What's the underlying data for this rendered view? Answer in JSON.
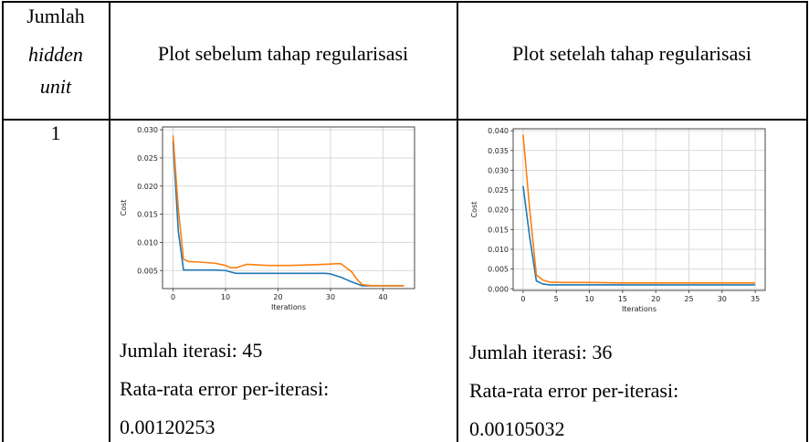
{
  "header": {
    "col1_line1": "Jumlah",
    "col1_line2": "hidden",
    "col1_line3": "unit",
    "col2": "Plot sebelum tahap regularisasi",
    "col3": "Plot setelah tahap regularisasi"
  },
  "row1": {
    "hidden_units": "1",
    "before": {
      "iterations_text": "Jumlah iterasi: 45",
      "error_label": "Rata-rata error per-iterasi:",
      "error_value": "0.00120253"
    },
    "after": {
      "iterations_text": "Jumlah iterasi: 36",
      "error_label": "Rata-rata error per-iterasi:",
      "error_value": "0.00105032"
    }
  },
  "colors": {
    "train": "#1f77b4",
    "test": "#ff7f0e",
    "grid": "#d9d9d9"
  },
  "chart_data": [
    {
      "type": "line",
      "xlabel": "Iterations",
      "ylabel": "Cost",
      "xlim": [
        -2,
        46
      ],
      "ylim": [
        0.0018,
        0.0305
      ],
      "xticks": [
        0,
        10,
        20,
        30,
        40
      ],
      "yticks": [
        0.005,
        0.01,
        0.015,
        0.02,
        0.025,
        0.03
      ],
      "ytick_labels": [
        "0.005",
        "0.010",
        "0.015",
        "0.020",
        "0.025",
        "0.030"
      ],
      "grid": true,
      "series": [
        {
          "color": "#1f77b4",
          "x": [
            0,
            1,
            2,
            3,
            5,
            8,
            10,
            12,
            14,
            18,
            22,
            26,
            29,
            30,
            32,
            34,
            36,
            38,
            40,
            42,
            44
          ],
          "y": [
            0.028,
            0.012,
            0.0051,
            0.0051,
            0.0051,
            0.0051,
            0.005,
            0.0045,
            0.0045,
            0.0045,
            0.0045,
            0.0045,
            0.0045,
            0.0044,
            0.0038,
            0.003,
            0.0023,
            0.0023,
            0.0023,
            0.0023,
            0.0023
          ]
        },
        {
          "color": "#ff7f0e",
          "x": [
            0,
            1,
            2,
            3,
            5,
            8,
            10,
            11,
            12,
            13,
            14,
            18,
            22,
            26,
            29,
            31,
            32,
            34,
            35,
            36,
            38,
            40,
            42,
            44
          ],
          "y": [
            0.029,
            0.016,
            0.007,
            0.0066,
            0.0065,
            0.0063,
            0.0059,
            0.0055,
            0.0055,
            0.0058,
            0.0061,
            0.0059,
            0.0059,
            0.006,
            0.0061,
            0.0062,
            0.0062,
            0.0048,
            0.0035,
            0.0025,
            0.0023,
            0.0023,
            0.0023,
            0.0023
          ]
        }
      ]
    },
    {
      "type": "line",
      "xlabel": "Iterations",
      "ylabel": "Cost",
      "xlim": [
        -1.5,
        36.5
      ],
      "ylim": [
        -0.0004,
        0.0405
      ],
      "xticks": [
        0,
        5,
        10,
        15,
        20,
        25,
        30,
        35
      ],
      "yticks": [
        0.0,
        0.005,
        0.01,
        0.015,
        0.02,
        0.025,
        0.03,
        0.035,
        0.04
      ],
      "ytick_labels": [
        "0.000",
        "0.005",
        "0.010",
        "0.015",
        "0.020",
        "0.025",
        "0.030",
        "0.035",
        "0.040"
      ],
      "grid": true,
      "series": [
        {
          "color": "#1f77b4",
          "x": [
            0,
            1,
            2,
            3,
            4,
            6,
            10,
            15,
            20,
            25,
            30,
            35
          ],
          "y": [
            0.026,
            0.013,
            0.002,
            0.0012,
            0.001,
            0.001,
            0.001,
            0.001,
            0.001,
            0.001,
            0.001,
            0.001
          ]
        },
        {
          "color": "#ff7f0e",
          "x": [
            0,
            1,
            2,
            3,
            4,
            6,
            10,
            15,
            20,
            25,
            30,
            35
          ],
          "y": [
            0.039,
            0.02,
            0.0035,
            0.0022,
            0.0017,
            0.0016,
            0.0016,
            0.0015,
            0.0015,
            0.0015,
            0.0015,
            0.0015
          ]
        }
      ]
    }
  ]
}
